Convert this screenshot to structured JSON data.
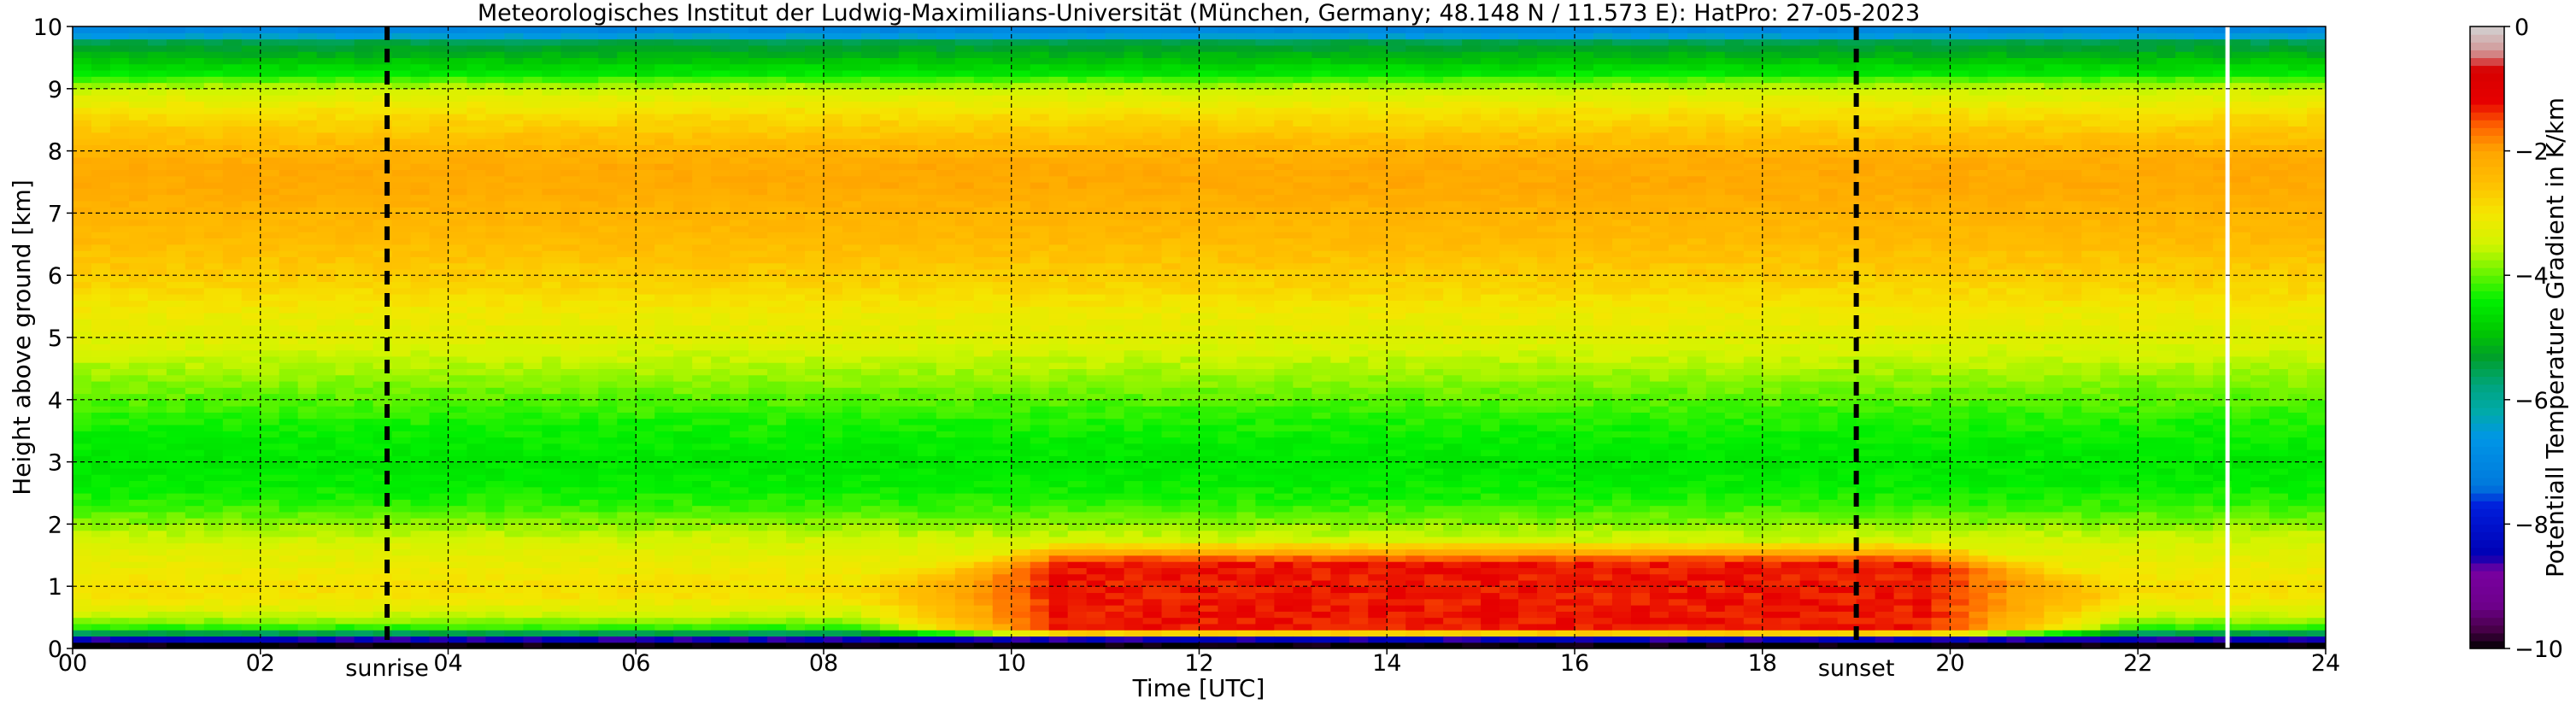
{
  "chart_data": {
    "type": "heatmap",
    "title": "Meteorologisches Institut der Ludwig-Maximilians-Universität (München, Germany; 48.148 N / 11.573 E):    HatPro: 27-05-2023",
    "xlabel": "Time [UTC]",
    "ylabel": "Height above ground [km]",
    "xlim": [
      0,
      24
    ],
    "ylim": [
      0,
      10
    ],
    "x_ticks": [
      0,
      2,
      4,
      6,
      8,
      10,
      12,
      14,
      16,
      18,
      20,
      22,
      24
    ],
    "x_tick_labels": [
      "00",
      "02",
      "04",
      "06",
      "08",
      "10",
      "12",
      "14",
      "16",
      "18",
      "20",
      "22",
      "24"
    ],
    "y_ticks": [
      0,
      1,
      2,
      3,
      4,
      5,
      6,
      7,
      8,
      9,
      10
    ],
    "y_tick_labels": [
      "0",
      "1",
      "2",
      "3",
      "4",
      "5",
      "6",
      "7",
      "8",
      "9",
      "10"
    ],
    "grid": true,
    "markers": [
      {
        "label": "sunrise",
        "x": 3.35
      },
      {
        "label": "sunset",
        "x": 19.0
      }
    ],
    "data_gap_x": 22.95,
    "colorbar": {
      "label": "Potentiall Temperature Gradient in K/km",
      "min": -10,
      "max": 0,
      "ticks": [
        0,
        -2,
        -4,
        -6,
        -8,
        -10
      ],
      "tick_labels": [
        "0",
        "−2",
        "−4",
        "−6",
        "−8",
        "−10"
      ]
    },
    "background_profile": [
      {
        "h": 0.05,
        "v": -10
      },
      {
        "h": 0.15,
        "v": -8.5
      },
      {
        "h": 0.25,
        "v": -5.5
      },
      {
        "h": 0.35,
        "v": -4.2
      },
      {
        "h": 0.5,
        "v": -3.6
      },
      {
        "h": 0.7,
        "v": -3.2
      },
      {
        "h": 0.9,
        "v": -2.9
      },
      {
        "h": 1.1,
        "v": -3.0
      },
      {
        "h": 1.4,
        "v": -3.2
      },
      {
        "h": 1.7,
        "v": -3.4
      },
      {
        "h": 2.0,
        "v": -3.8
      },
      {
        "h": 2.3,
        "v": -4.2
      },
      {
        "h": 2.6,
        "v": -4.4
      },
      {
        "h": 3.0,
        "v": -4.5
      },
      {
        "h": 3.4,
        "v": -4.4
      },
      {
        "h": 3.8,
        "v": -4.2
      },
      {
        "h": 4.2,
        "v": -3.9
      },
      {
        "h": 4.6,
        "v": -3.6
      },
      {
        "h": 5.0,
        "v": -3.3
      },
      {
        "h": 5.4,
        "v": -3.1
      },
      {
        "h": 5.8,
        "v": -2.8
      },
      {
        "h": 6.2,
        "v": -2.6
      },
      {
        "h": 6.6,
        "v": -2.4
      },
      {
        "h": 7.0,
        "v": -2.3
      },
      {
        "h": 7.4,
        "v": -2.1
      },
      {
        "h": 7.8,
        "v": -2.1
      },
      {
        "h": 8.2,
        "v": -2.5
      },
      {
        "h": 8.6,
        "v": -2.9
      },
      {
        "h": 9.0,
        "v": -3.5
      },
      {
        "h": 9.25,
        "v": -4.5
      },
      {
        "h": 9.5,
        "v": -5.0
      },
      {
        "h": 9.75,
        "v": -5.5
      },
      {
        "h": 9.9,
        "v": -7.0
      }
    ],
    "diurnal_layer": {
      "bottom_km": 0.15,
      "top_km": 1.75,
      "start": 8.3,
      "peak_start": 10.5,
      "peak_end": 19.8,
      "end": 22.0,
      "peak_value": -1.3
    }
  }
}
